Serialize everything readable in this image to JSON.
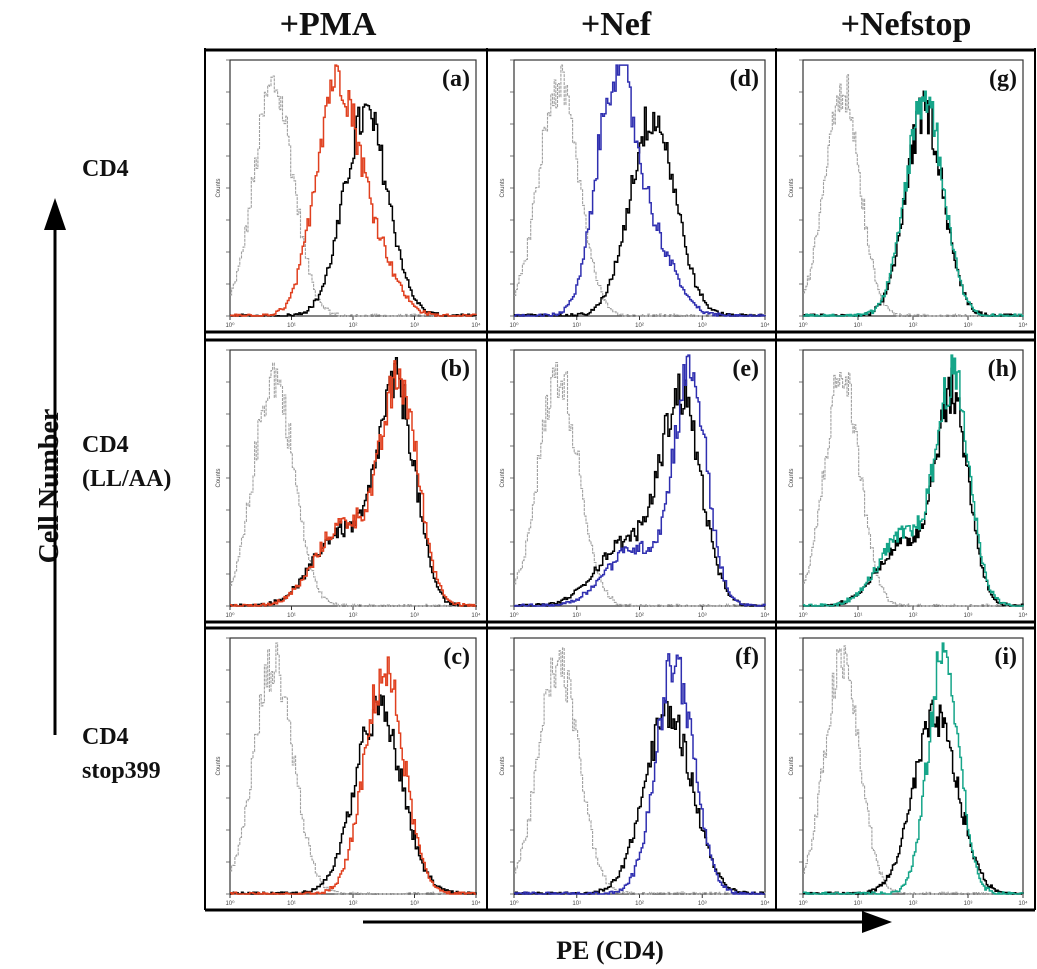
{
  "figure": {
    "column_headers": [
      "+PMA",
      "+Nef",
      "+Nefstop"
    ],
    "row_labels": [
      [
        "CD4"
      ],
      [
        "CD4",
        "(LL/AA)"
      ],
      [
        "CD4",
        "stop399"
      ]
    ],
    "y_axis_label": "Cell Number",
    "x_axis_label": "PE (CD4)",
    "colors": {
      "control": "#a0a0a0",
      "reference": "#000000",
      "pma": "#e0401f",
      "nef": "#2f2fb0",
      "nefstop": "#16a589"
    }
  },
  "chart_data": [
    {
      "type": "area",
      "panel_label": "(a)",
      "x_scale": "log",
      "xlim": [
        1,
        10000
      ],
      "tick_labels": [
        "10⁰",
        "10¹",
        "10²",
        "10³",
        "10⁴"
      ],
      "ylabel": "Counts",
      "series": [
        {
          "color": "control",
          "peak_log": 0.7,
          "width": 0.32,
          "height": 0.92
        },
        {
          "color": "reference",
          "peak_log": 2.2,
          "width": 0.36,
          "height": 0.8
        },
        {
          "color": "pma",
          "peak_log": 1.7,
          "width": 0.33,
          "height": 0.9,
          "tail": 0.3
        }
      ]
    },
    {
      "type": "area",
      "panel_label": "(b)",
      "x_scale": "log",
      "xlim": [
        1,
        10000
      ],
      "tick_labels": [
        "10⁰",
        "10¹",
        "10²",
        "10³",
        "10⁴"
      ],
      "ylabel": "Counts",
      "series": [
        {
          "color": "control",
          "peak_log": 0.7,
          "width": 0.32,
          "height": 0.92
        },
        {
          "color": "reference",
          "peak_log": 2.7,
          "width": 0.3,
          "height": 0.85,
          "shoulder": 0.35
        },
        {
          "color": "pma",
          "peak_log": 2.75,
          "width": 0.3,
          "height": 0.86,
          "shoulder": 0.38
        }
      ]
    },
    {
      "type": "area",
      "panel_label": "(c)",
      "x_scale": "log",
      "xlim": [
        1,
        10000
      ],
      "tick_labels": [
        "10⁰",
        "10¹",
        "10²",
        "10³",
        "10⁴"
      ],
      "ylabel": "Counts",
      "series": [
        {
          "color": "control",
          "peak_log": 0.7,
          "width": 0.32,
          "height": 0.92
        },
        {
          "color": "reference",
          "peak_log": 2.4,
          "width": 0.38,
          "height": 0.73
        },
        {
          "color": "pma",
          "peak_log": 2.5,
          "width": 0.32,
          "height": 0.88
        }
      ]
    },
    {
      "type": "area",
      "panel_label": "(d)",
      "x_scale": "log",
      "xlim": [
        1,
        10000
      ],
      "tick_labels": [
        "10⁰",
        "10¹",
        "10²",
        "10³",
        "10⁴"
      ],
      "ylabel": "Counts",
      "series": [
        {
          "color": "control",
          "peak_log": 0.7,
          "width": 0.32,
          "height": 0.92
        },
        {
          "color": "reference",
          "peak_log": 2.2,
          "width": 0.36,
          "height": 0.8
        },
        {
          "color": "nef",
          "peak_log": 1.6,
          "width": 0.3,
          "height": 0.94,
          "tail": 0.3
        }
      ]
    },
    {
      "type": "area",
      "panel_label": "(e)",
      "x_scale": "log",
      "xlim": [
        1,
        10000
      ],
      "tick_labels": [
        "10⁰",
        "10¹",
        "10²",
        "10³",
        "10⁴"
      ],
      "ylabel": "Counts",
      "series": [
        {
          "color": "control",
          "peak_log": 0.7,
          "width": 0.32,
          "height": 0.92
        },
        {
          "color": "reference",
          "peak_log": 2.65,
          "width": 0.32,
          "height": 0.82,
          "shoulder": 0.3
        },
        {
          "color": "nef",
          "peak_log": 2.8,
          "width": 0.26,
          "height": 0.92,
          "shoulder": 0.25
        }
      ]
    },
    {
      "type": "area",
      "panel_label": "(f)",
      "x_scale": "log",
      "xlim": [
        1,
        10000
      ],
      "tick_labels": [
        "10⁰",
        "10¹",
        "10²",
        "10³",
        "10⁴"
      ],
      "ylabel": "Counts",
      "series": [
        {
          "color": "control",
          "peak_log": 0.7,
          "width": 0.32,
          "height": 0.92
        },
        {
          "color": "reference",
          "peak_log": 2.45,
          "width": 0.38,
          "height": 0.72
        },
        {
          "color": "nef",
          "peak_log": 2.55,
          "width": 0.3,
          "height": 0.92
        }
      ]
    },
    {
      "type": "area",
      "panel_label": "(g)",
      "x_scale": "log",
      "xlim": [
        1,
        10000
      ],
      "tick_labels": [
        "10⁰",
        "10¹",
        "10²",
        "10³",
        "10⁴"
      ],
      "ylabel": "Counts",
      "series": [
        {
          "color": "control",
          "peak_log": 0.7,
          "width": 0.32,
          "height": 0.92
        },
        {
          "color": "reference",
          "peak_log": 2.2,
          "width": 0.34,
          "height": 0.82
        },
        {
          "color": "nefstop",
          "peak_log": 2.2,
          "width": 0.34,
          "height": 0.88
        }
      ]
    },
    {
      "type": "area",
      "panel_label": "(h)",
      "x_scale": "log",
      "xlim": [
        1,
        10000
      ],
      "tick_labels": [
        "10⁰",
        "10¹",
        "10²",
        "10³",
        "10⁴"
      ],
      "ylabel": "Counts",
      "series": [
        {
          "color": "control",
          "peak_log": 0.7,
          "width": 0.32,
          "height": 0.92
        },
        {
          "color": "reference",
          "peak_log": 2.7,
          "width": 0.3,
          "height": 0.82,
          "shoulder": 0.3
        },
        {
          "color": "nefstop",
          "peak_log": 2.72,
          "width": 0.3,
          "height": 0.88,
          "shoulder": 0.32
        }
      ]
    },
    {
      "type": "area",
      "panel_label": "(i)",
      "x_scale": "log",
      "xlim": [
        1,
        10000
      ],
      "tick_labels": [
        "10⁰",
        "10¹",
        "10²",
        "10³",
        "10⁴"
      ],
      "ylabel": "Counts",
      "series": [
        {
          "color": "control",
          "peak_log": 0.7,
          "width": 0.32,
          "height": 0.92
        },
        {
          "color": "reference",
          "peak_log": 2.4,
          "width": 0.4,
          "height": 0.7
        },
        {
          "color": "nefstop",
          "peak_log": 2.55,
          "width": 0.28,
          "height": 0.96
        }
      ]
    }
  ]
}
